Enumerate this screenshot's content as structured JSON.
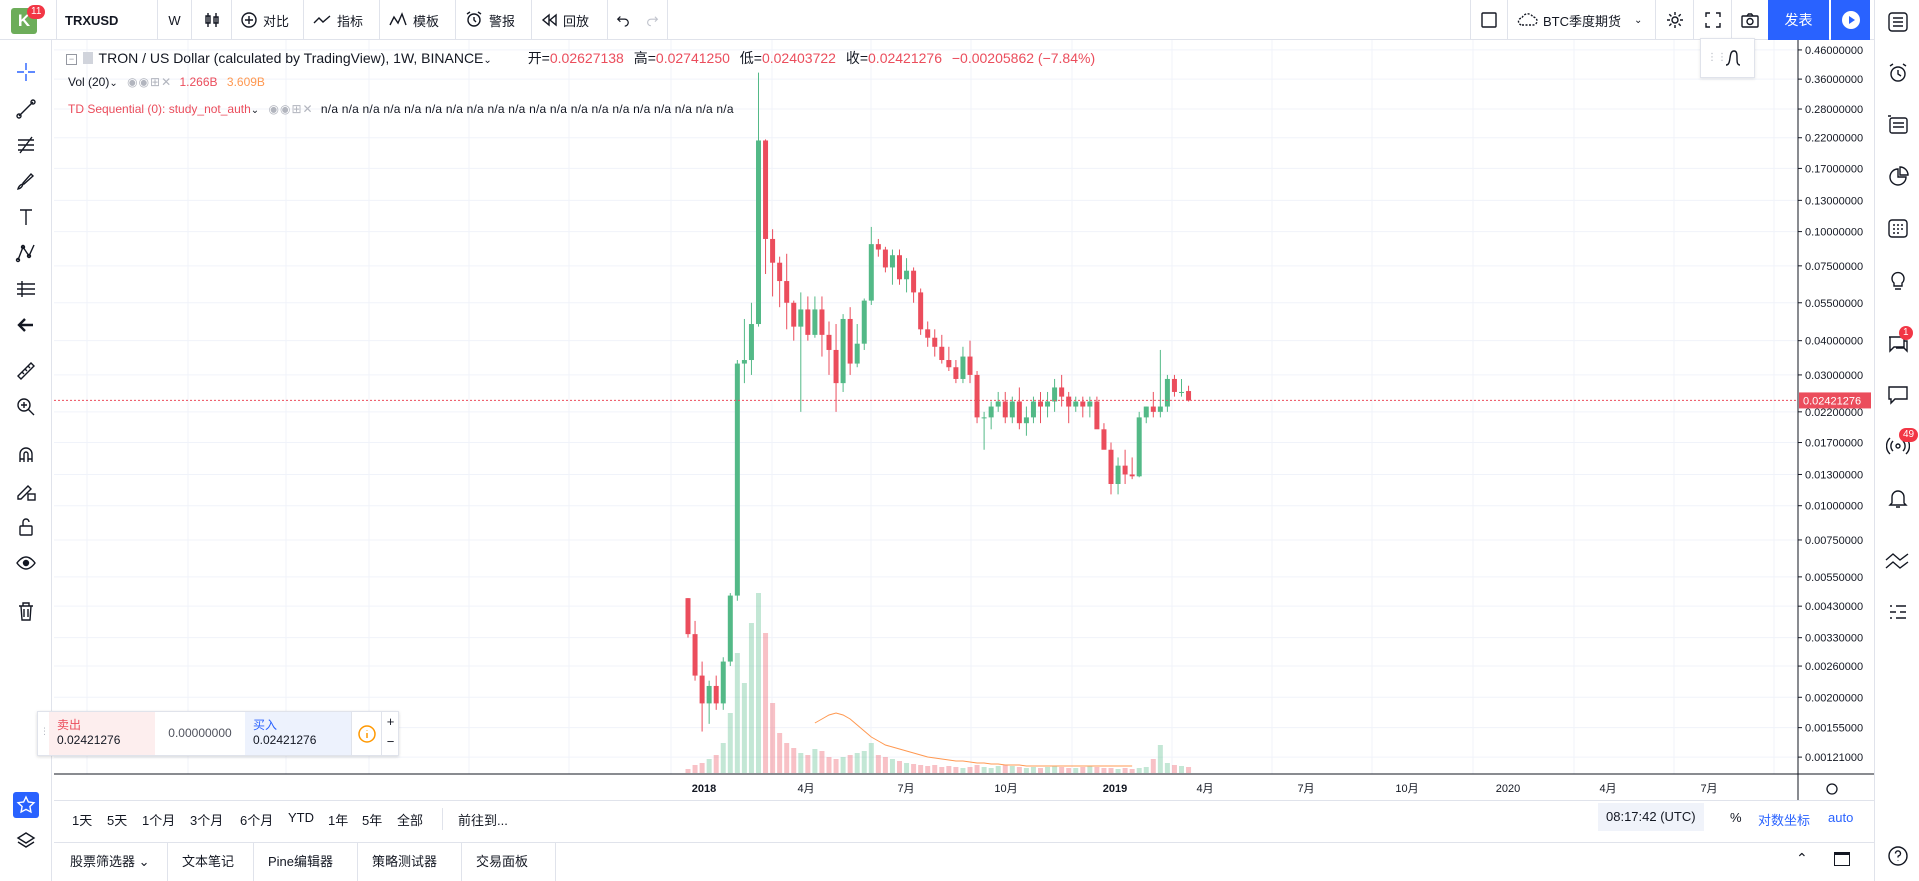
{
  "topbar": {
    "logo_letter": "K",
    "logo_badge": "11",
    "symbol": "TRXUSD",
    "interval": "W",
    "compare_label": "对比",
    "indicators_label": "指标",
    "templates_label": "模板",
    "alert_label": "警报",
    "replay_label": "回放",
    "btc_futures_label": "BTC季度期货",
    "publish_label": "发表"
  },
  "legend": {
    "title": "TRON / US Dollar (calculated by TradingView), 1W, BINANCE",
    "open_label": "开=",
    "open": "0.02627138",
    "high_label": "高=",
    "high": "0.02741250",
    "low_label": "低=",
    "low": "0.02403722",
    "close_label": "收=",
    "close": "0.02421276",
    "change": "−0.00205862 (−7.84%)",
    "vol_label": "Vol (20)",
    "vol_1": "1.266B",
    "vol_2": "3.609B",
    "td_label": "TD Sequential (0): study_not_auth",
    "td_values": "n/a n/a n/a n/a n/a n/a n/a n/a n/a n/a n/a n/a n/a n/a n/a n/a n/a n/a n/a n/a"
  },
  "price_axis": {
    "labels": [
      "0.46000000",
      "0.36000000",
      "0.28000000",
      "0.22000000",
      "0.17000000",
      "0.13000000",
      "0.10000000",
      "0.07500000",
      "0.05500000",
      "0.04000000",
      "0.03000000",
      "0.02200000",
      "0.01700000",
      "0.01300000",
      "0.01000000",
      "0.00750000",
      "0.00550000",
      "0.00430000",
      "0.00330000",
      "0.00260000",
      "0.00200000",
      "0.00155000",
      "0.00121000"
    ],
    "current_price": "0.02421276"
  },
  "time_axis": {
    "labels": [
      "2018",
      "4月",
      "7月",
      "10月",
      "2019",
      "4月",
      "7月",
      "10月",
      "2020",
      "4月",
      "7月"
    ]
  },
  "trade": {
    "sell_label": "卖出",
    "sell_price": "0.02421276",
    "spread": "0.00000000",
    "buy_label": "买入",
    "buy_price": "0.02421276"
  },
  "ranges": [
    "1天",
    "5天",
    "1个月",
    "3个月",
    "6个月",
    "YTD",
    "1年",
    "5年",
    "全部"
  ],
  "goto_label": "前往到...",
  "clock": "08:17:42 (UTC)",
  "scale_pct": "%",
  "scale_log": "对数坐标",
  "scale_auto": "auto",
  "footer_tabs": [
    "股票筛选器",
    "文本笔记",
    "Pine编辑器",
    "策略测试器",
    "交易面板"
  ],
  "right_badges": {
    "chat": "1",
    "streams": "49"
  },
  "colors": {
    "up": "#53b987",
    "down": "#eb4d5c",
    "accent": "#2962ff",
    "volume_ma": "#ff9850"
  },
  "chart_data": {
    "type": "candlestick",
    "scale": "log",
    "ylim": [
      0.00105,
      0.5
    ],
    "candles": [
      [
        0.0046,
        0.0046,
        0.0033,
        0.0034
      ],
      [
        0.0034,
        0.0038,
        0.0023,
        0.0024
      ],
      [
        0.0024,
        0.0027,
        0.0015,
        0.0019
      ],
      [
        0.0019,
        0.0023,
        0.0016,
        0.0022
      ],
      [
        0.0022,
        0.0024,
        0.0018,
        0.0019
      ],
      [
        0.0019,
        0.0028,
        0.0018,
        0.0027
      ],
      [
        0.0027,
        0.0048,
        0.0026,
        0.0047
      ],
      [
        0.0047,
        0.034,
        0.0045,
        0.033
      ],
      [
        0.033,
        0.048,
        0.028,
        0.034
      ],
      [
        0.034,
        0.055,
        0.03,
        0.046
      ],
      [
        0.046,
        0.38,
        0.045,
        0.215
      ],
      [
        0.215,
        0.217,
        0.07,
        0.094
      ],
      [
        0.094,
        0.102,
        0.058,
        0.077
      ],
      [
        0.077,
        0.081,
        0.053,
        0.066
      ],
      [
        0.066,
        0.083,
        0.044,
        0.055
      ],
      [
        0.055,
        0.056,
        0.04,
        0.045
      ],
      [
        0.045,
        0.06,
        0.022,
        0.052
      ],
      [
        0.052,
        0.058,
        0.04,
        0.042
      ],
      [
        0.042,
        0.058,
        0.041,
        0.052
      ],
      [
        0.052,
        0.058,
        0.035,
        0.042
      ],
      [
        0.042,
        0.047,
        0.03,
        0.037
      ],
      [
        0.037,
        0.046,
        0.022,
        0.028
      ],
      [
        0.028,
        0.05,
        0.026,
        0.048
      ],
      [
        0.048,
        0.053,
        0.03,
        0.033
      ],
      [
        0.033,
        0.046,
        0.032,
        0.039
      ],
      [
        0.039,
        0.057,
        0.037,
        0.056
      ],
      [
        0.056,
        0.104,
        0.054,
        0.09
      ],
      [
        0.09,
        0.094,
        0.081,
        0.086
      ],
      [
        0.086,
        0.088,
        0.071,
        0.074
      ],
      [
        0.074,
        0.086,
        0.064,
        0.082
      ],
      [
        0.082,
        0.086,
        0.064,
        0.067
      ],
      [
        0.067,
        0.08,
        0.06,
        0.072
      ],
      [
        0.072,
        0.074,
        0.055,
        0.06
      ],
      [
        0.06,
        0.062,
        0.042,
        0.044
      ],
      [
        0.044,
        0.047,
        0.038,
        0.041
      ],
      [
        0.041,
        0.044,
        0.035,
        0.038
      ],
      [
        0.038,
        0.042,
        0.033,
        0.034
      ],
      [
        0.034,
        0.038,
        0.031,
        0.032
      ],
      [
        0.032,
        0.034,
        0.028,
        0.029
      ],
      [
        0.029,
        0.038,
        0.028,
        0.035
      ],
      [
        0.035,
        0.04,
        0.028,
        0.03
      ],
      [
        0.03,
        0.031,
        0.02,
        0.021
      ],
      [
        0.021,
        0.022,
        0.016,
        0.021
      ],
      [
        0.021,
        0.024,
        0.019,
        0.023
      ],
      [
        0.023,
        0.026,
        0.022,
        0.024
      ],
      [
        0.024,
        0.026,
        0.02,
        0.021
      ],
      [
        0.021,
        0.025,
        0.02,
        0.024
      ],
      [
        0.024,
        0.027,
        0.019,
        0.02
      ],
      [
        0.02,
        0.023,
        0.018,
        0.021
      ],
      [
        0.021,
        0.025,
        0.02,
        0.024
      ],
      [
        0.024,
        0.026,
        0.02,
        0.023
      ],
      [
        0.023,
        0.026,
        0.021,
        0.024
      ],
      [
        0.024,
        0.029,
        0.022,
        0.027
      ],
      [
        0.027,
        0.03,
        0.023,
        0.025
      ],
      [
        0.025,
        0.026,
        0.02,
        0.023
      ],
      [
        0.023,
        0.025,
        0.022,
        0.024
      ],
      [
        0.024,
        0.025,
        0.021,
        0.023
      ],
      [
        0.023,
        0.025,
        0.021,
        0.024
      ],
      [
        0.024,
        0.025,
        0.02,
        0.019
      ],
      [
        0.019,
        0.02,
        0.017,
        0.016
      ],
      [
        0.016,
        0.017,
        0.011,
        0.012
      ],
      [
        0.012,
        0.015,
        0.011,
        0.014
      ],
      [
        0.014,
        0.016,
        0.012,
        0.013
      ],
      [
        0.013,
        0.015,
        0.0125,
        0.0128
      ],
      [
        0.0128,
        0.022,
        0.0127,
        0.021
      ],
      [
        0.021,
        0.023,
        0.02,
        0.023
      ],
      [
        0.023,
        0.026,
        0.021,
        0.022
      ],
      [
        0.022,
        0.037,
        0.021,
        0.023
      ],
      [
        0.023,
        0.03,
        0.022,
        0.029
      ],
      [
        0.029,
        0.03,
        0.025,
        0.026
      ],
      [
        0.026,
        0.029,
        0.025,
        0.026
      ],
      [
        0.0262,
        0.0274,
        0.024,
        0.0242
      ]
    ],
    "volume": [
      4,
      8,
      10,
      14,
      18,
      30,
      60,
      120,
      90,
      150,
      180,
      140,
      70,
      40,
      30,
      25,
      20,
      18,
      24,
      22,
      16,
      14,
      16,
      18,
      20,
      22,
      30,
      18,
      16,
      14,
      12,
      10,
      9,
      8,
      7,
      8,
      6,
      7,
      6,
      5,
      6,
      8,
      6,
      5,
      7,
      8,
      7,
      6,
      5,
      6,
      5,
      6,
      7,
      6,
      5,
      5,
      6,
      7,
      6,
      5,
      5,
      4,
      5,
      4,
      5,
      6,
      14,
      28,
      10,
      8,
      7,
      6
    ],
    "volume_ma": [
      50,
      54,
      58,
      60,
      58,
      54,
      48,
      42,
      36,
      32,
      28,
      26,
      24,
      22,
      20,
      18,
      16,
      15,
      14,
      13,
      12,
      12,
      11,
      10,
      10,
      9,
      9,
      8,
      8,
      8,
      7,
      7,
      7,
      7,
      7,
      7,
      7,
      7,
      7,
      7,
      7,
      7,
      7,
      7,
      7,
      7
    ]
  }
}
